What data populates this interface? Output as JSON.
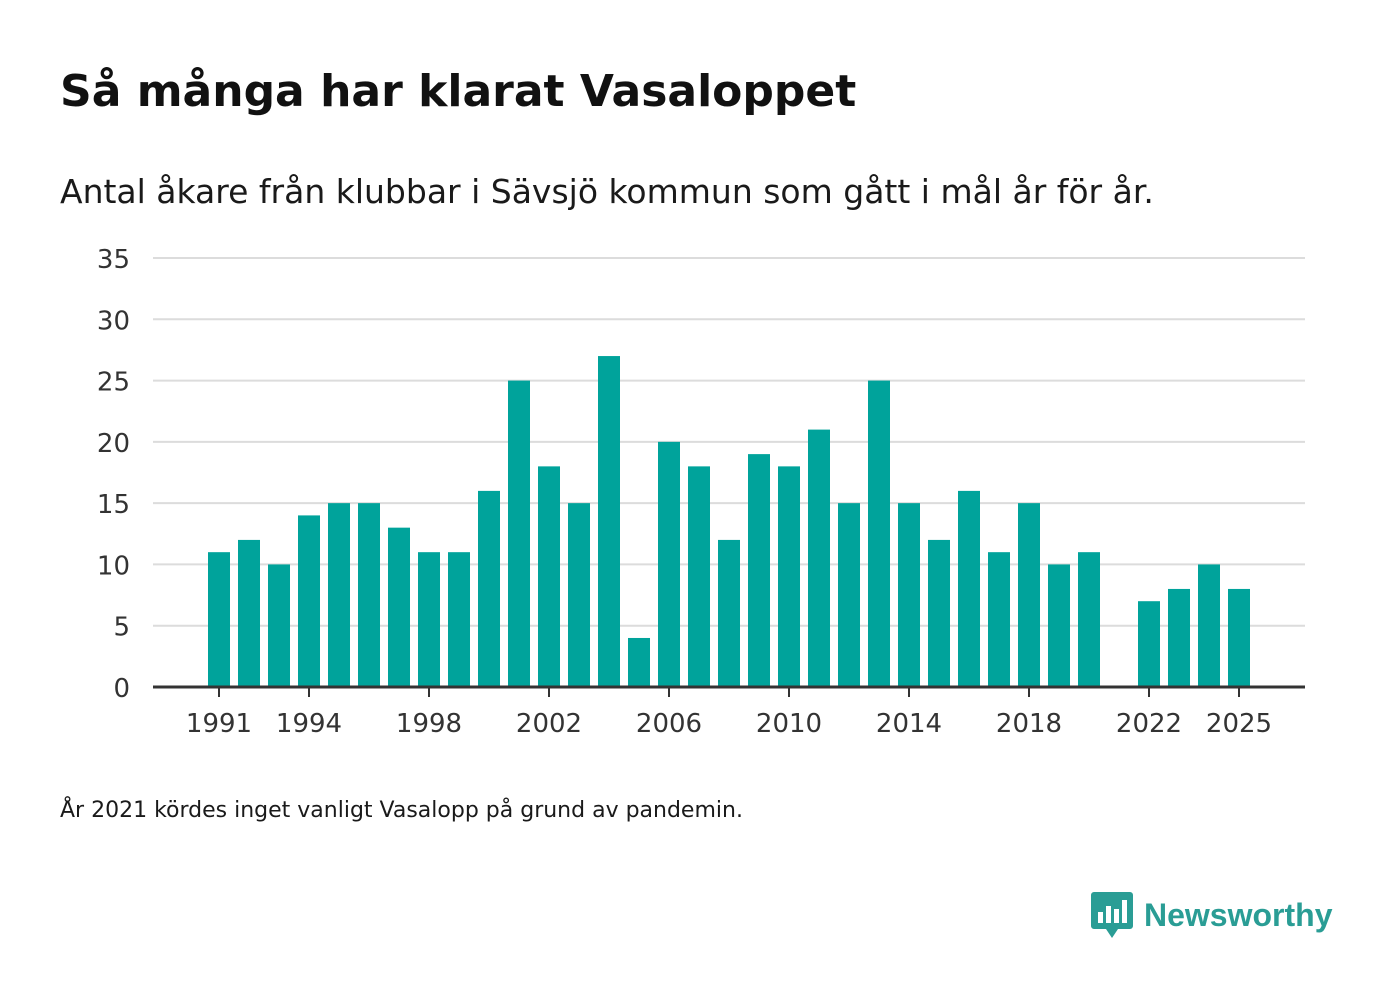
{
  "chart_data": {
    "type": "bar",
    "title": "Så många har klarat Vasaloppet",
    "subtitle": "Antal åkare från klubbar i Sävsjö kommun som gått i mål år för år.",
    "note": "År 2021 kördes inget vanligt Vasalopp på grund av pandemin.",
    "xlabel": "",
    "ylabel": "",
    "ylim": [
      0,
      35
    ],
    "yticks": [
      0,
      5,
      10,
      15,
      20,
      25,
      30,
      35
    ],
    "xtick_labels": [
      "1991",
      "1994",
      "1998",
      "2002",
      "2006",
      "2010",
      "2014",
      "2018",
      "2022",
      "2025"
    ],
    "grid": true,
    "bar_color": "#00a39b",
    "categories": [
      "1991",
      "1992",
      "1993",
      "1994",
      "1995",
      "1996",
      "1997",
      "1998",
      "1999",
      "2000",
      "2001",
      "2002",
      "2003",
      "2004",
      "2005",
      "2006",
      "2007",
      "2008",
      "2009",
      "2010",
      "2011",
      "2012",
      "2013",
      "2014",
      "2015",
      "2016",
      "2017",
      "2018",
      "2019",
      "2020",
      "2021",
      "2022",
      "2023",
      "2024",
      "2025"
    ],
    "values": [
      11,
      12,
      10,
      14,
      15,
      15,
      13,
      11,
      11,
      16,
      25,
      18,
      15,
      27,
      4,
      20,
      18,
      12,
      19,
      18,
      21,
      15,
      25,
      15,
      12,
      16,
      11,
      15,
      10,
      11,
      null,
      7,
      8,
      10,
      8
    ]
  },
  "brand": {
    "name": "Newsworthy",
    "icon": "newsworthy-logo-icon",
    "color": "#2a9d95"
  }
}
